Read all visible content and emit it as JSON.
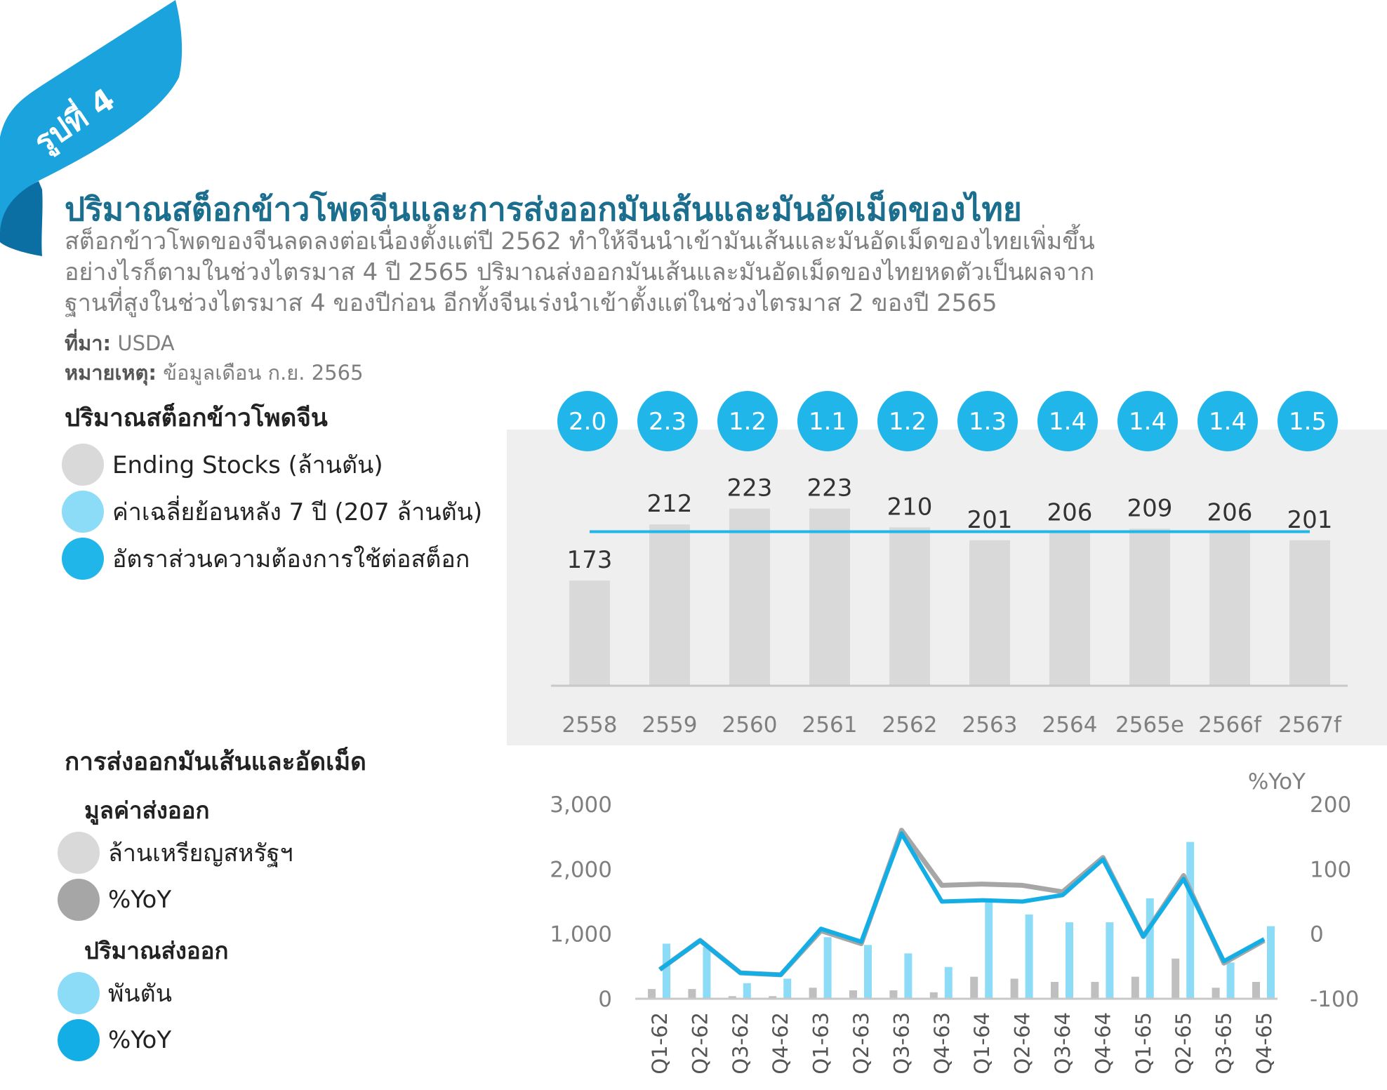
{
  "badge": "รูปที่ 4",
  "title": "ปริมาณสต็อกข้าวโพดจีนและการส่งออกมันเส้นและมันอัดเม็ดของไทย",
  "description": [
    "สต็อกข้าวโพดของจีนลดลงต่อเนื่องตั้งแต่ปี 2562 ทำให้จีนนำเข้ามันเส้นและมันอัดเม็ดของไทยเพิ่มขึ้น",
    "อย่างไรก็ตามในช่วงไตรมาส 4 ปี 2565 ปริมาณส่งออกมันเส้นและมันอัดเม็ดของไทยหดตัวเป็นผลจาก",
    "ฐานที่สูงในช่วงไตรมาส 4 ของปีก่อน อีกทั้งจีนเร่งนำเข้าตั้งแต่ในช่วงไตรมาส 2 ของปี 2565"
  ],
  "source": {
    "label": "ที่มา:",
    "value": "USDA"
  },
  "note": {
    "label": "หมายเหตุ:",
    "value": "ข้อมูลเดือน ก.ย. 2565"
  },
  "section1": {
    "title": "ปริมาณสต็อกข้าวโพดจีน",
    "legend": [
      {
        "label": "Ending Stocks (ล้านตัน)",
        "color": "#d9d9d9"
      },
      {
        "label": "ค่าเฉลี่ยย้อนหลัง 7 ปี (207 ล้านตัน)",
        "color": "#8ddcf7"
      },
      {
        "label": "อัตราส่วนความต้องการใช้ต่อสต็อก",
        "color": "#20b6ea"
      }
    ]
  },
  "section2": {
    "title": "การส่งออกมันเส้นและอัดเม็ด",
    "group1": {
      "title": "มูลค่าส่งออก",
      "legend": [
        {
          "label": "ล้านเหรียญสหรัฐฯ",
          "color": "#d9d9d9"
        },
        {
          "label": "%YoY",
          "color": "#a6a6a6"
        }
      ]
    },
    "group2": {
      "title": "ปริมาณส่งออก",
      "legend": [
        {
          "label": "พันตัน",
          "color": "#8ddcf7"
        },
        {
          "label": "%YoY",
          "color": "#13aee6"
        }
      ]
    }
  },
  "chart_data": [
    {
      "type": "bar",
      "categories": [
        "2558",
        "2559",
        "2560",
        "2561",
        "2562",
        "2563",
        "2564",
        "2565e",
        "2566f",
        "2567f"
      ],
      "series": [
        {
          "values": [
            173,
            212,
            223,
            223,
            210,
            201,
            206,
            209,
            206,
            201
          ]
        }
      ],
      "average_line": 207,
      "ratio_badges": [
        "2.0",
        "2.3",
        "1.2",
        "1.1",
        "1.2",
        "1.3",
        "1.4",
        "1.4",
        "1.4",
        "1.5"
      ],
      "ylim": [
        100,
        235
      ],
      "colors": {
        "bar": "#d9d9d9",
        "line": "#20b6ea",
        "badge": "#20b6ea",
        "panel": "#efefef"
      }
    },
    {
      "type": "bar",
      "categories": [
        "Q1-62",
        "Q2-62",
        "Q3-62",
        "Q4-62",
        "Q1-63",
        "Q2-63",
        "Q3-63",
        "Q4-63",
        "Q1-64",
        "Q2-64",
        "Q3-64",
        "Q4-64",
        "Q1-65",
        "Q2-65",
        "Q3-65",
        "Q4-65"
      ],
      "series": [
        {
          "axis": "left",
          "kind": "bar",
          "values": [
            150,
            150,
            40,
            40,
            170,
            130,
            130,
            100,
            340,
            310,
            260,
            260,
            340,
            620,
            170,
            260
          ],
          "color": "#bfbfbf"
        },
        {
          "axis": "left",
          "kind": "bar",
          "values": [
            850,
            800,
            240,
            310,
            950,
            830,
            700,
            490,
            1530,
            1300,
            1180,
            1180,
            1550,
            2420,
            560,
            1120
          ],
          "color": "#8ddcf7"
        },
        {
          "axis": "right",
          "kind": "line",
          "values": [
            -55,
            -10,
            -60,
            -63,
            5,
            -15,
            160,
            75,
            77,
            75,
            65,
            118,
            -4,
            90,
            -45,
            -10
          ],
          "color": "#a6a6a6"
        },
        {
          "axis": "right",
          "kind": "line",
          "values": [
            -55,
            -10,
            -60,
            -63,
            8,
            -12,
            155,
            50,
            52,
            50,
            60,
            115,
            -4,
            85,
            -42,
            -8
          ],
          "color": "#13aee6"
        }
      ],
      "ylim": [
        0,
        3000
      ],
      "y2lim": [
        -100,
        200
      ],
      "y_ticks": [
        "0",
        "1,000",
        "2,000",
        "3,000"
      ],
      "y2_ticks": [
        "-100",
        "0",
        "100",
        "200"
      ],
      "y2label": "%YoY"
    }
  ]
}
